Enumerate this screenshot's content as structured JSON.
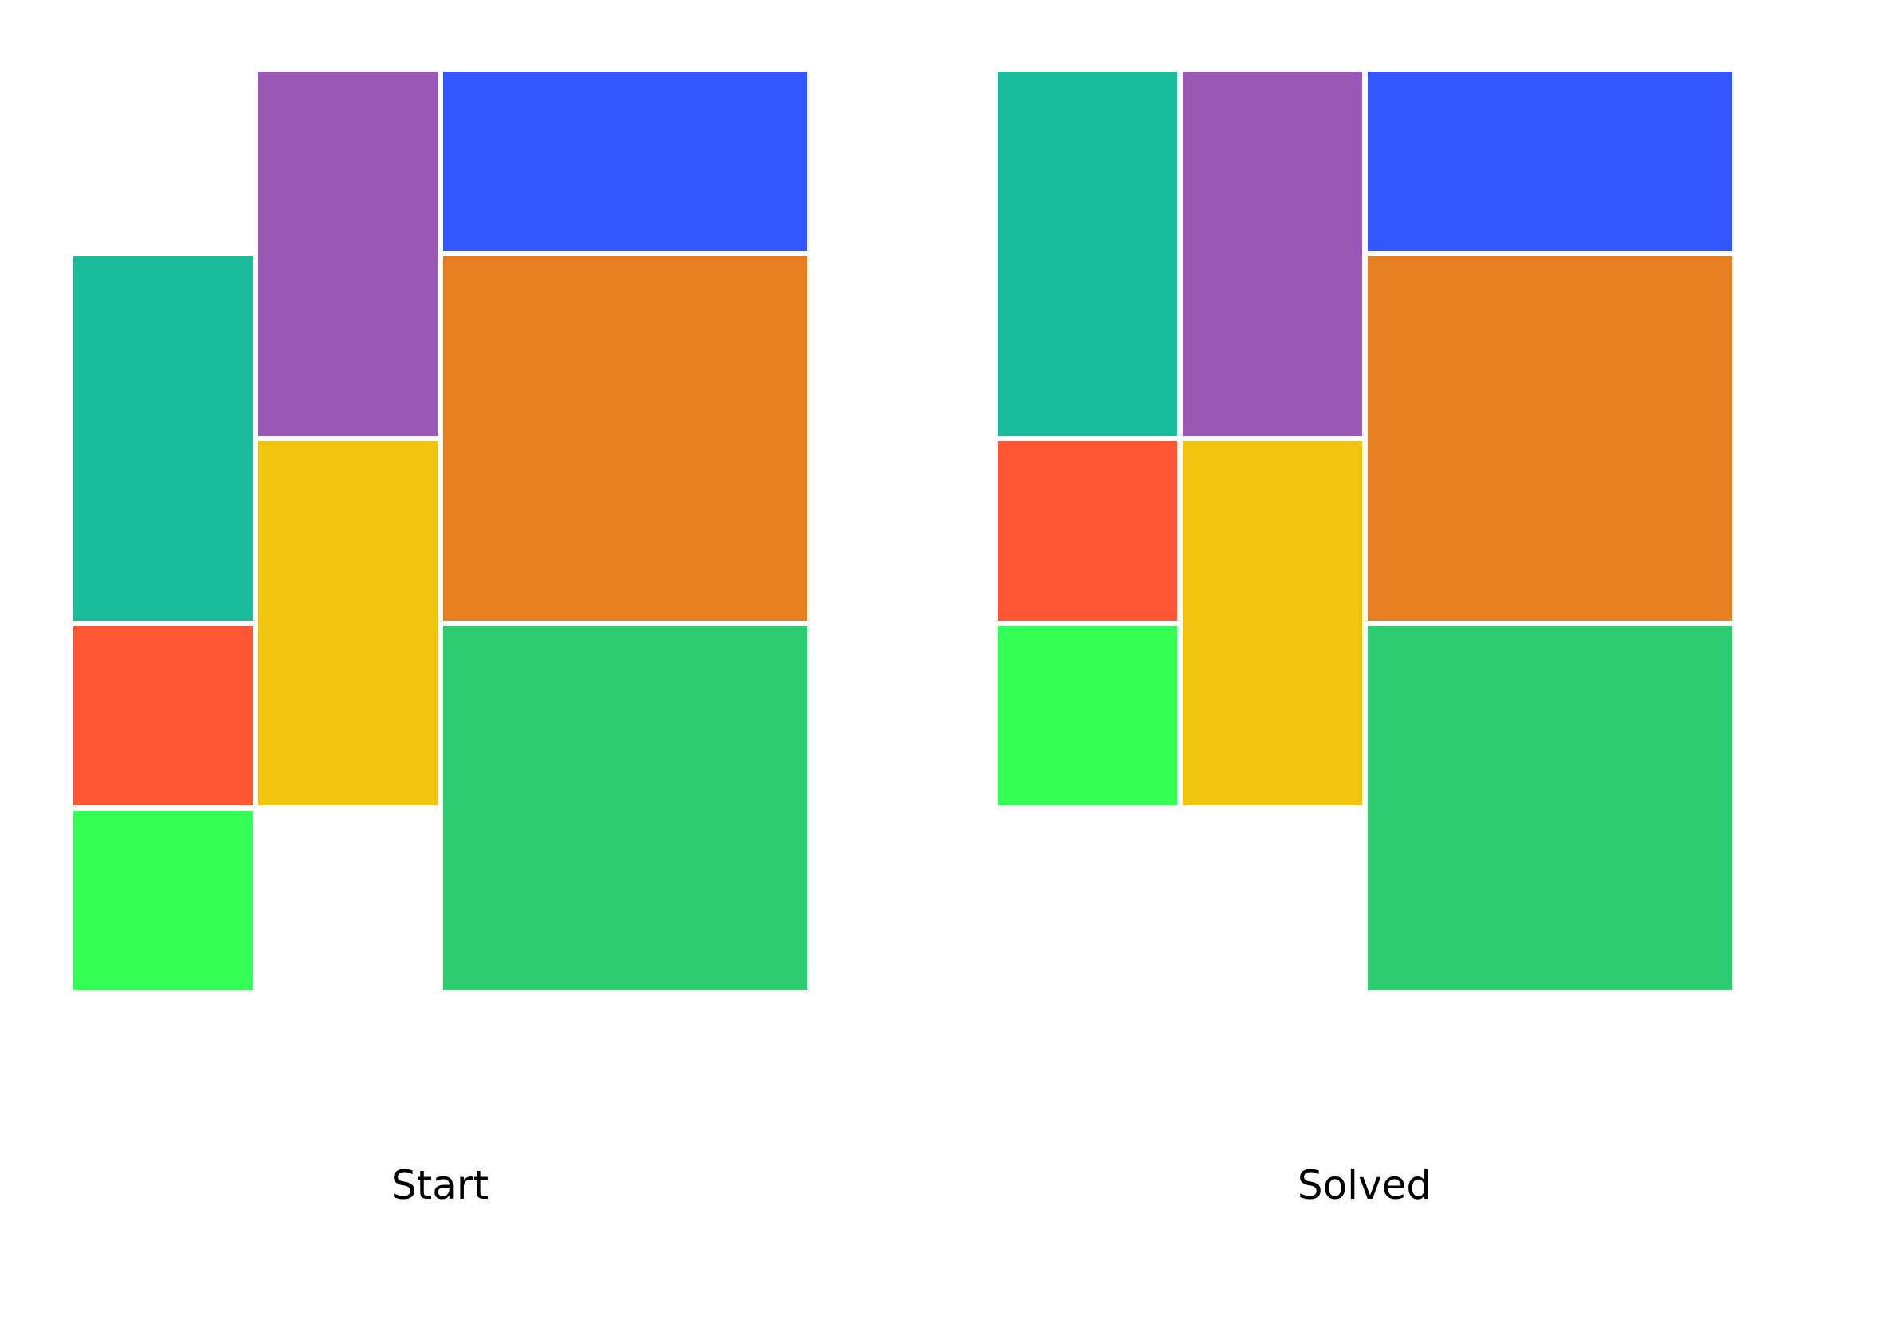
{
  "boards": [
    {
      "caption": "Start",
      "grid": {
        "cols": 4,
        "rows": 5
      },
      "blocks": [
        {
          "color": "#1abc9c",
          "col": 0,
          "row": 1,
          "w": 1,
          "h": 2
        },
        {
          "color": "#ff5733",
          "col": 0,
          "row": 3,
          "w": 1,
          "h": 1
        },
        {
          "color": "#33ff57",
          "col": 0,
          "row": 4,
          "w": 1,
          "h": 1
        },
        {
          "color": "#9b59b6",
          "col": 1,
          "row": 0,
          "w": 1,
          "h": 2
        },
        {
          "color": "#f1c40f",
          "col": 1,
          "row": 2,
          "w": 1,
          "h": 2
        },
        {
          "color": "#3357ff",
          "col": 2,
          "row": 0,
          "w": 2,
          "h": 1
        },
        {
          "color": "#e67e22",
          "col": 2,
          "row": 1,
          "w": 2,
          "h": 2
        },
        {
          "color": "#2ecc71",
          "col": 2,
          "row": 3,
          "w": 2,
          "h": 2
        }
      ]
    },
    {
      "caption": "Solved",
      "grid": {
        "cols": 4,
        "rows": 5
      },
      "blocks": [
        {
          "color": "#1abc9c",
          "col": 0,
          "row": 0,
          "w": 1,
          "h": 2
        },
        {
          "color": "#ff5733",
          "col": 0,
          "row": 2,
          "w": 1,
          "h": 1
        },
        {
          "color": "#33ff57",
          "col": 0,
          "row": 3,
          "w": 1,
          "h": 1
        },
        {
          "color": "#9b59b6",
          "col": 1,
          "row": 0,
          "w": 1,
          "h": 2
        },
        {
          "color": "#f1c40f",
          "col": 1,
          "row": 2,
          "w": 1,
          "h": 2
        },
        {
          "color": "#3357ff",
          "col": 2,
          "row": 0,
          "w": 2,
          "h": 1
        },
        {
          "color": "#e67e22",
          "col": 2,
          "row": 1,
          "w": 2,
          "h": 2
        },
        {
          "color": "#2ecc71",
          "col": 2,
          "row": 3,
          "w": 2,
          "h": 2
        }
      ]
    }
  ]
}
